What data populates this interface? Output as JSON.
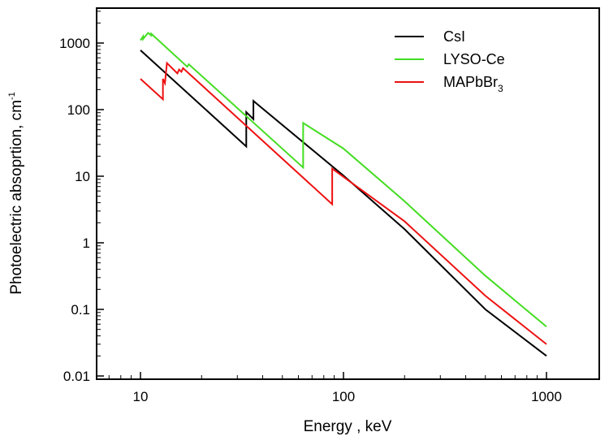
{
  "chart_data": {
    "type": "line",
    "xlabel": "Energy , keV",
    "ylabel_main": "Photoelectric absoprtion, cm",
    "ylabel_sup": "-1",
    "xscale": "log",
    "yscale": "log",
    "xlim": [
      6,
      2000
    ],
    "ylim": [
      0.008,
      4000
    ],
    "x_ticks": [
      {
        "value": 10,
        "label": "10"
      },
      {
        "value": 100,
        "label": "100"
      },
      {
        "value": 1000,
        "label": "1000"
      }
    ],
    "y_ticks": [
      {
        "value": 0.01,
        "label": "0.01"
      },
      {
        "value": 0.1,
        "label": "0.1"
      },
      {
        "value": 1,
        "label": "1"
      },
      {
        "value": 10,
        "label": "10"
      },
      {
        "value": 100,
        "label": "100"
      },
      {
        "value": 1000,
        "label": "1000"
      }
    ],
    "grid": false,
    "legend_position": "top-right",
    "series": [
      {
        "name": "CsI",
        "color": "#000000",
        "points": [
          [
            10,
            780
          ],
          [
            33.2,
            28
          ],
          [
            33.2,
            92
          ],
          [
            36,
            72
          ],
          [
            36,
            135
          ],
          [
            100,
            10.2
          ],
          [
            200,
            1.6
          ],
          [
            500,
            0.1
          ],
          [
            1000,
            0.02
          ]
        ]
      },
      {
        "name": "LYSO-Ce",
        "color": "#44dd22",
        "points": [
          [
            10,
            1100
          ],
          [
            10.3,
            1260
          ],
          [
            10.3,
            1150
          ],
          [
            10.9,
            1420
          ],
          [
            11.3,
            1300
          ],
          [
            11.3,
            1380
          ],
          [
            17,
            440
          ],
          [
            17.3,
            480
          ],
          [
            63.3,
            13.5
          ],
          [
            63.3,
            63
          ],
          [
            100,
            26
          ],
          [
            200,
            4.2
          ],
          [
            500,
            0.32
          ],
          [
            1000,
            0.055
          ]
        ]
      },
      {
        "name_main": "MAPbBr",
        "name_sub": "3",
        "color": "#ee1111",
        "points": [
          [
            10,
            290
          ],
          [
            12.9,
            143
          ],
          [
            12.9,
            290
          ],
          [
            13.2,
            250
          ],
          [
            13.5,
            500
          ],
          [
            15.2,
            350
          ],
          [
            15.5,
            400
          ],
          [
            15.9,
            370
          ],
          [
            16.2,
            420
          ],
          [
            88,
            3.8
          ],
          [
            88,
            13
          ],
          [
            200,
            2.1
          ],
          [
            500,
            0.16
          ],
          [
            1000,
            0.03
          ]
        ]
      }
    ]
  }
}
